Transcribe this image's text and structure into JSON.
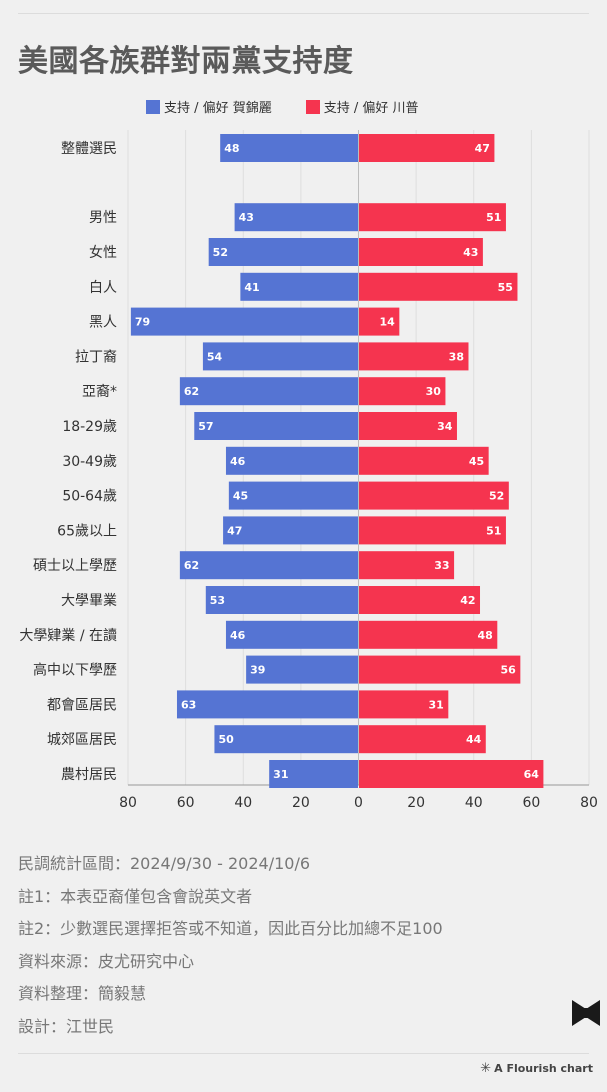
{
  "title": "美國各族群對兩黨支持度",
  "legend": {
    "harris": "支持 / 偏好 賀錦麗",
    "trump": "支持 / 偏好 川普"
  },
  "colors": {
    "harris": "#5574d3",
    "trump": "#f5344f"
  },
  "chart_data": {
    "type": "bar",
    "orientation": "horizontal-diverging",
    "categories": [
      "整體選民",
      "男性",
      "女性",
      "白人",
      "黑人",
      "拉丁裔",
      "亞裔*",
      "18-29歲",
      "30-49歲",
      "50-64歲",
      "65歲以上",
      "碩士以上學歷",
      "大學畢業",
      "大學肄業 / 在讀",
      "高中以下學歷",
      "都會區居民",
      "城郊區居民",
      "農村居民"
    ],
    "series": [
      {
        "name": "支持 / 偏好 賀錦麗",
        "values": [
          48,
          43,
          52,
          41,
          79,
          54,
          62,
          57,
          46,
          45,
          47,
          62,
          53,
          46,
          39,
          63,
          50,
          31
        ]
      },
      {
        "name": "支持 / 偏好 川普",
        "values": [
          47,
          51,
          43,
          55,
          14,
          38,
          30,
          34,
          45,
          52,
          51,
          33,
          42,
          48,
          56,
          31,
          44,
          64
        ]
      }
    ],
    "xlim": [
      -80,
      80
    ],
    "xticks": [
      "80",
      "60",
      "40",
      "20",
      "0",
      "20",
      "40",
      "60",
      "80"
    ],
    "grid": true,
    "legend_position": "top"
  },
  "notes": [
    "民調統計區間：2024/9/30 - 2024/10/6",
    "註1：本表亞裔僅包含會說英文者",
    "註2：少數選民選擇拒答或不知道，因此百分比加總不足100",
    "資料來源：皮尤研究中心",
    "資料整理：簡毅慧",
    "設計：江世民"
  ],
  "credit": "A Flourish chart"
}
